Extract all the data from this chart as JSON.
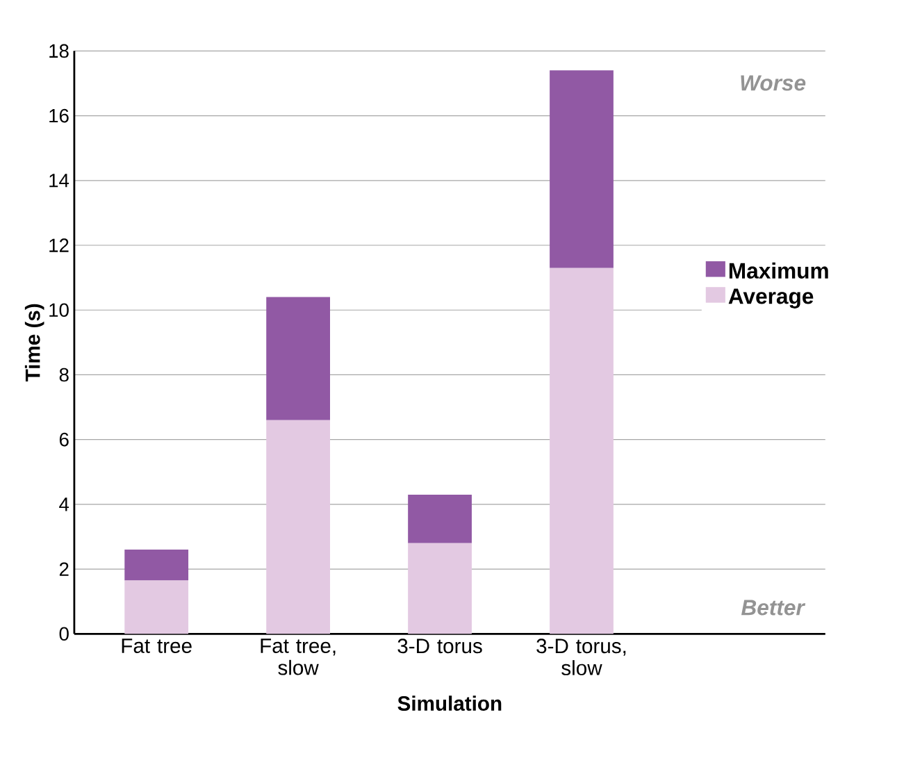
{
  "chart_data": {
    "type": "bar",
    "stacked": true,
    "xlabel": "Simulation",
    "ylabel": "Time (s)",
    "categories": [
      "Fat tree",
      "Fat tree, slow",
      "3-D torus",
      "3-D torus, slow"
    ],
    "series": [
      {
        "name": "Average",
        "color": "#e3c9e2",
        "values": [
          1.65,
          6.6,
          2.8,
          11.3
        ]
      },
      {
        "name": "Maximum",
        "color": "#9159a4",
        "values": [
          0.95,
          3.8,
          1.5,
          6.1
        ]
      }
    ],
    "ylim": [
      0,
      18
    ],
    "yticks": [
      0,
      2,
      4,
      6,
      8,
      10,
      12,
      14,
      16,
      18
    ],
    "grid": "y",
    "legend": "right",
    "annotations": [
      "Worse",
      "Better"
    ]
  }
}
